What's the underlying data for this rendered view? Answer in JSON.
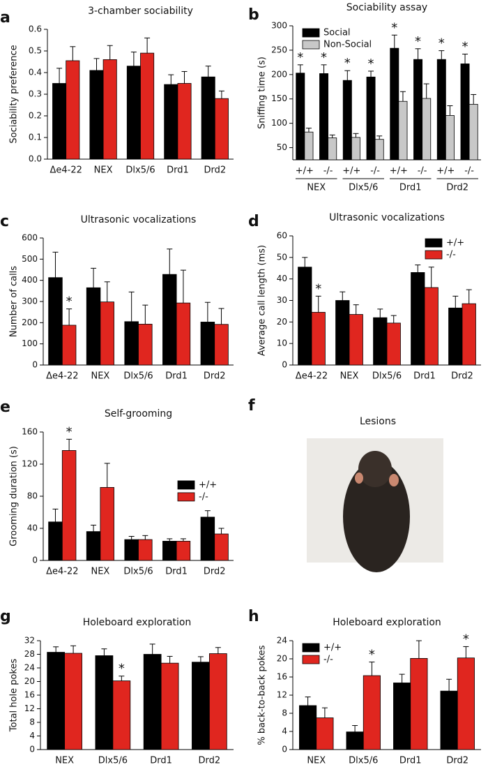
{
  "chart_data": [
    {
      "type": "bar",
      "label": "a",
      "title": "3-chamber sociability",
      "ylabel": "Sociability preference",
      "categories": [
        "Δe4-22",
        "NEX",
        "Dlx5/6",
        "Drd1",
        "Drd2"
      ],
      "series": [
        {
          "color": "#000000",
          "values": [
            0.35,
            0.41,
            0.43,
            0.345,
            0.38
          ],
          "errors": [
            0.07,
            0.055,
            0.065,
            0.045,
            0.05
          ]
        },
        {
          "color": "#e0261f",
          "values": [
            0.455,
            0.46,
            0.49,
            0.35,
            0.28
          ],
          "errors": [
            0.065,
            0.065,
            0.07,
            0.055,
            0.035
          ]
        }
      ],
      "ylim": [
        0,
        0.6
      ],
      "yticks": [
        {
          "value": 0,
          "label": "0.0"
        },
        0.1,
        0.2,
        0.3,
        0.4,
        0.5,
        0.6
      ]
    },
    {
      "type": "bar",
      "label": "b",
      "title": "Sociability assay",
      "ylabel": "Sniffing time (s)",
      "categories": [
        "+/+",
        "-/-",
        "+/+",
        "-/-",
        "+/+",
        "-/-",
        "+/+",
        "-/-"
      ],
      "groups": [
        "NEX",
        "Dlx5/6",
        "Drd1",
        "Drd2"
      ],
      "series": [
        {
          "name": "Social",
          "color": "#000000",
          "values": [
            203,
            202,
            188,
            195,
            254,
            231,
            231,
            222
          ],
          "errors": [
            17,
            18,
            20,
            12,
            27,
            22,
            18,
            20
          ],
          "markers": [
            "*",
            "*",
            "*",
            "*",
            "*",
            "*",
            "*",
            "*"
          ]
        },
        {
          "name": "Non-Social",
          "color": "#c8c8c8",
          "values": [
            82,
            70,
            71,
            67,
            145,
            151,
            116,
            139
          ],
          "errors": [
            8,
            6,
            8,
            7,
            20,
            30,
            20,
            20
          ]
        }
      ],
      "ylim": [
        25,
        300
      ],
      "yticks": [
        50,
        100,
        150,
        200,
        250,
        300
      ],
      "legend": "upper left"
    },
    {
      "type": "bar",
      "label": "c",
      "title": "Ultrasonic vocalizations",
      "ylabel": "Number of calls",
      "categories": [
        "Δe4-22",
        "NEX",
        "Dlx5/6",
        "Drd1",
        "Drd2"
      ],
      "series": [
        {
          "color": "#000000",
          "values": [
            413,
            365,
            205,
            428,
            203
          ],
          "errors": [
            120,
            92,
            140,
            120,
            93
          ]
        },
        {
          "color": "#e0261f",
          "values": [
            188,
            298,
            193,
            293,
            192
          ],
          "errors": [
            77,
            95,
            90,
            155,
            75
          ],
          "markers": [
            "*",
            null,
            null,
            null,
            null
          ]
        }
      ],
      "ylim": [
        0,
        600
      ],
      "yticks": [
        0,
        100,
        200,
        300,
        400,
        500,
        600
      ]
    },
    {
      "type": "bar",
      "label": "d",
      "title": "Ultrasonic vocalizations",
      "ylabel": "Average call length (ms)",
      "categories": [
        "Δe4-22",
        "NEX",
        "Dlx5/6",
        "Drd1",
        "Drd2"
      ],
      "series": [
        {
          "name": "+/+",
          "color": "#000000",
          "values": [
            45.5,
            30,
            22,
            43,
            26.5
          ],
          "errors": [
            4.5,
            4,
            4,
            3.5,
            5.5
          ]
        },
        {
          "name": "-/-",
          "color": "#e0261f",
          "values": [
            24.5,
            23.5,
            19.5,
            36,
            28.5
          ],
          "errors": [
            7.5,
            4.5,
            3.5,
            9.5,
            6.5
          ],
          "markers": [
            "*",
            null,
            null,
            null,
            null
          ]
        }
      ],
      "ylim": [
        0,
        60
      ],
      "yticks": [
        0,
        10,
        20,
        30,
        40,
        50,
        60
      ],
      "legend": "upper right"
    },
    {
      "type": "bar",
      "label": "e",
      "title": "Self-grooming",
      "ylabel": "Grooming duration (s)",
      "categories": [
        "Δe4-22",
        "NEX",
        "Dlx5/6",
        "Drd1",
        "Drd2"
      ],
      "series": [
        {
          "name": "+/+",
          "color": "#000000",
          "values": [
            48,
            36,
            26,
            24,
            54
          ],
          "errors": [
            16,
            8,
            4,
            3,
            8
          ]
        },
        {
          "name": "-/-",
          "color": "#e0261f",
          "values": [
            137,
            91,
            26,
            24,
            33
          ],
          "errors": [
            14,
            30,
            5,
            3,
            7
          ],
          "markers": [
            "*",
            null,
            null,
            null,
            null
          ]
        }
      ],
      "ylim": [
        0,
        160
      ],
      "yticks": [
        0,
        40,
        80,
        120,
        160
      ],
      "legend": "center right"
    },
    {
      "type": "bar",
      "label": "g",
      "title": "Holeboard exploration",
      "ylabel": "Total hole pokes",
      "categories": [
        "NEX",
        "Dlx5/6",
        "Drd1",
        "Drd2"
      ],
      "series": [
        {
          "color": "#000000",
          "values": [
            28.6,
            27.6,
            28,
            25.7
          ],
          "errors": [
            1.6,
            2,
            3,
            1.6
          ]
        },
        {
          "color": "#e0261f",
          "values": [
            28.3,
            20.2,
            25.4,
            28.2
          ],
          "errors": [
            2.2,
            1.4,
            2,
            1.8
          ],
          "markers": [
            null,
            "*",
            null,
            null
          ]
        }
      ],
      "ylim": [
        0,
        32
      ],
      "yticks": [
        0,
        4,
        8,
        12,
        16,
        20,
        24,
        28,
        32
      ]
    },
    {
      "type": "bar",
      "label": "h",
      "title": "Holeboard exploration",
      "ylabel": "% back-to-back pokes",
      "categories": [
        "NEX",
        "Dlx5/6",
        "Drd1",
        "Drd2"
      ],
      "series": [
        {
          "name": "+/+",
          "color": "#000000",
          "values": [
            9.7,
            3.9,
            14.7,
            12.9
          ],
          "errors": [
            1.9,
            1.4,
            1.9,
            2.6
          ]
        },
        {
          "name": "-/-",
          "color": "#e0261f",
          "values": [
            7,
            16.3,
            20.1,
            20.2
          ],
          "errors": [
            2.2,
            3,
            3.9,
            2.5
          ],
          "markers": [
            null,
            "*",
            null,
            "*"
          ]
        }
      ],
      "ylim": [
        0,
        24
      ],
      "yticks": [
        0,
        4,
        8,
        12,
        16,
        20,
        24
      ],
      "legend": "upper left"
    }
  ],
  "image_panel": {
    "label": "f",
    "title": "Lesions"
  }
}
